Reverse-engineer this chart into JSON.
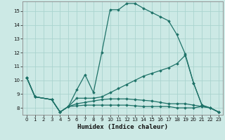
{
  "xlabel": "Humidex (Indice chaleur)",
  "bg_color": "#cce9e5",
  "grid_color": "#aad4cf",
  "line_color": "#1e7268",
  "xlim": [
    -0.5,
    23.5
  ],
  "ylim": [
    7.5,
    15.7
  ],
  "xticks": [
    0,
    1,
    2,
    3,
    4,
    5,
    6,
    7,
    8,
    9,
    10,
    11,
    12,
    13,
    14,
    15,
    16,
    17,
    18,
    19,
    20,
    21,
    22,
    23
  ],
  "yticks": [
    8,
    9,
    10,
    11,
    12,
    13,
    14,
    15
  ],
  "curves": [
    {
      "x": [
        0,
        1,
        3,
        4,
        5,
        6,
        7,
        8,
        9,
        10,
        11,
        12,
        13,
        14,
        15,
        16,
        17,
        18,
        19,
        20,
        21,
        22,
        23
      ],
      "y": [
        10.2,
        8.8,
        8.6,
        7.7,
        8.1,
        9.3,
        10.4,
        9.1,
        12.0,
        15.1,
        15.1,
        15.55,
        15.55,
        15.2,
        14.9,
        14.6,
        14.3,
        13.3,
        11.9,
        9.8,
        8.2,
        8.0,
        7.7
      ]
    },
    {
      "x": [
        0,
        1,
        3,
        4,
        5,
        6,
        7,
        8,
        9,
        10,
        11,
        12,
        13,
        14,
        15,
        16,
        17,
        18,
        19,
        20,
        21,
        22,
        23
      ],
      "y": [
        10.2,
        8.8,
        8.6,
        7.7,
        8.1,
        8.7,
        8.7,
        8.7,
        8.8,
        9.1,
        9.4,
        9.7,
        10.0,
        10.3,
        10.5,
        10.7,
        10.9,
        11.2,
        11.8,
        9.8,
        8.2,
        8.0,
        7.7
      ]
    },
    {
      "x": [
        0,
        1,
        3,
        4,
        5,
        6,
        7,
        8,
        9,
        10,
        11,
        12,
        13,
        14,
        15,
        16,
        17,
        18,
        19,
        20,
        21,
        22,
        23
      ],
      "y": [
        10.2,
        8.8,
        8.6,
        7.7,
        8.1,
        8.3,
        8.4,
        8.5,
        8.6,
        8.65,
        8.65,
        8.65,
        8.6,
        8.55,
        8.5,
        8.4,
        8.3,
        8.3,
        8.3,
        8.2,
        8.1,
        8.0,
        7.7
      ]
    },
    {
      "x": [
        0,
        1,
        3,
        4,
        5,
        6,
        7,
        8,
        9,
        10,
        11,
        12,
        13,
        14,
        15,
        16,
        17,
        18,
        19,
        20,
        21,
        22,
        23
      ],
      "y": [
        10.2,
        8.8,
        8.6,
        7.7,
        8.1,
        8.15,
        8.2,
        8.2,
        8.2,
        8.2,
        8.2,
        8.2,
        8.15,
        8.1,
        8.1,
        8.1,
        8.1,
        8.0,
        8.0,
        8.0,
        8.1,
        8.0,
        7.7
      ]
    }
  ]
}
